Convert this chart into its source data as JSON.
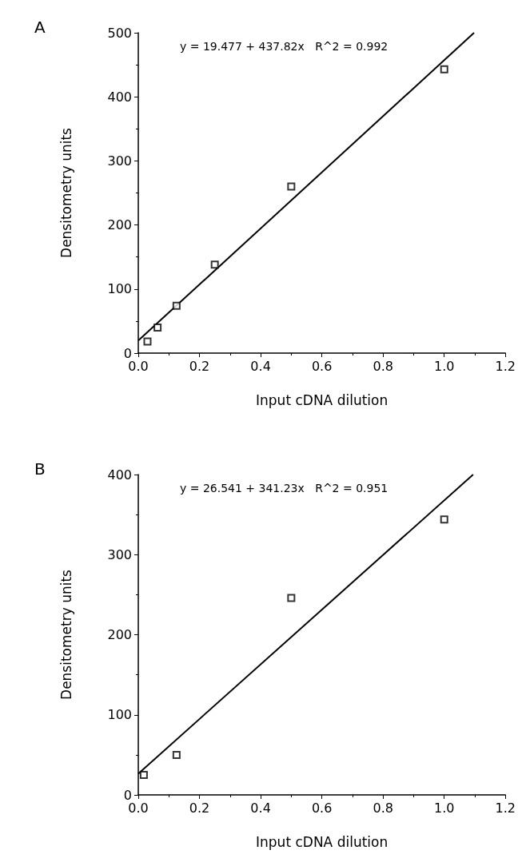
{
  "chart_data": [
    {
      "type": "scatter",
      "title": "A",
      "xlabel": "Input cDNA dilution",
      "ylabel": "Densitometry units",
      "annotations": [
        "y = 19.477 + 437.82x   R^2 = 0.992"
      ],
      "xlim": [
        0,
        1.2
      ],
      "ylim": [
        0,
        500
      ],
      "xticks": [
        {
          "value": 0,
          "label": "0.0"
        },
        {
          "value": 0.2,
          "label": "0.2"
        },
        {
          "value": 0.4,
          "label": "0.4"
        },
        {
          "value": 0.6,
          "label": "0.6"
        },
        {
          "value": 0.8,
          "label": "0.8"
        },
        {
          "value": 1,
          "label": "1.0"
        },
        {
          "value": 1.2,
          "label": "1.2"
        }
      ],
      "yticks": [
        0,
        100,
        200,
        300,
        400,
        500
      ],
      "series": [
        {
          "type": "scatter",
          "marker": "square",
          "color": "#000000",
          "x": [
            0.03,
            0.063,
            0.125,
            0.25,
            0.5,
            1.0
          ],
          "values": [
            18,
            40,
            74,
            138,
            260,
            443
          ]
        },
        {
          "type": "line",
          "marker": "none",
          "line_style": "solid",
          "color": "#000000",
          "x": [
            0,
            1.0975
          ],
          "values": [
            19.5,
            500
          ]
        }
      ]
    },
    {
      "type": "scatter",
      "title": "B",
      "xlabel": "Input cDNA dilution",
      "ylabel": "Densitometry units",
      "annotations": [
        "y = 26.541 + 341.23x   R^2 = 0.951"
      ],
      "xlim": [
        0,
        1.2
      ],
      "ylim": [
        0,
        400
      ],
      "xticks": [
        {
          "value": 0,
          "label": "0.0"
        },
        {
          "value": 0.2,
          "label": "0.2"
        },
        {
          "value": 0.4,
          "label": "0.4"
        },
        {
          "value": 0.6,
          "label": "0.6"
        },
        {
          "value": 0.8,
          "label": "0.8"
        },
        {
          "value": 1,
          "label": "1.0"
        },
        {
          "value": 1.2,
          "label": "1.2"
        }
      ],
      "yticks": [
        0,
        100,
        200,
        300,
        400
      ],
      "series": [
        {
          "type": "scatter",
          "marker": "square",
          "color": "#000000",
          "x": [
            0.018,
            0.125,
            0.5,
            1.0
          ],
          "values": [
            25,
            50,
            246,
            344
          ]
        },
        {
          "type": "line",
          "marker": "none",
          "line_style": "solid",
          "color": "#000000",
          "x": [
            0,
            1.0945
          ],
          "values": [
            26.5,
            400
          ]
        }
      ]
    }
  ]
}
